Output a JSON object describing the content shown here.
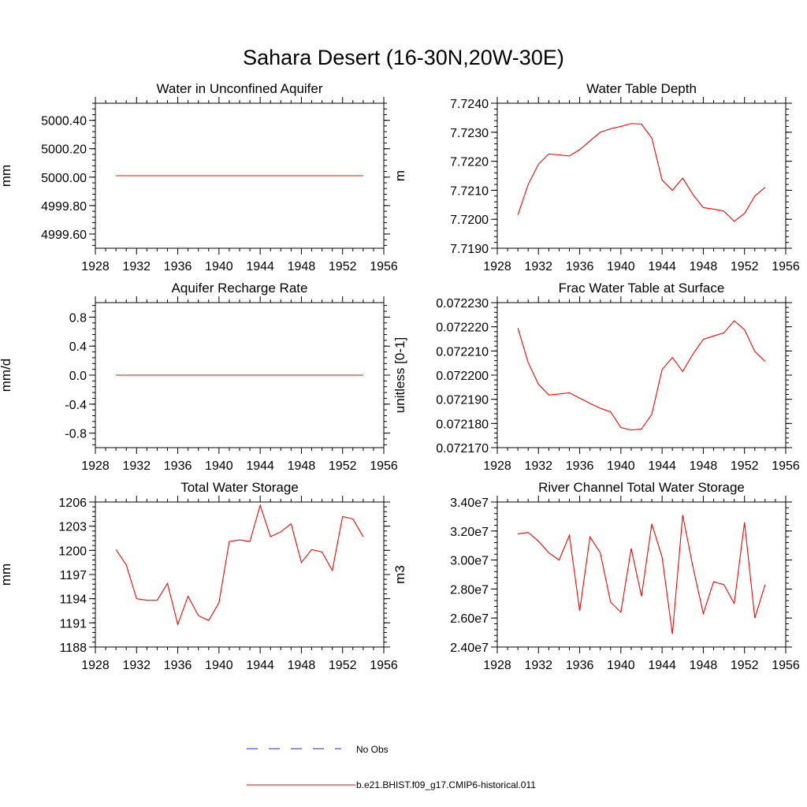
{
  "figure": {
    "title": "Sahara Desert (16-30N,20W-30E)",
    "legend": [
      {
        "label": "No Obs",
        "color": "#2b2bcf",
        "dash": true
      },
      {
        "label": "b.e21.BHIST.f09_g17.CMIP6-historical.011",
        "color": "#ff0000",
        "dash": false
      }
    ]
  },
  "chart_data": [
    {
      "type": "line",
      "title": "Water in Unconfined Aquifer",
      "ylabel": "mm",
      "xlim": [
        1928,
        1956
      ],
      "xticks": [
        1928,
        1932,
        1936,
        1940,
        1944,
        1948,
        1952,
        1956
      ],
      "ylim": [
        4999.5,
        5000.52
      ],
      "yticks": [
        4999.6,
        4999.8,
        5000.0,
        5000.2,
        5000.4
      ],
      "ytick_labels": [
        "4999.60",
        "4999.80",
        "5000.00",
        "5000.20",
        "5000.40"
      ],
      "series": [
        {
          "color": "#ff0000",
          "x": [
            1930,
            1931,
            1932,
            1933,
            1934,
            1935,
            1936,
            1937,
            1938,
            1939,
            1940,
            1941,
            1942,
            1943,
            1944,
            1945,
            1946,
            1947,
            1948,
            1949,
            1950,
            1951,
            1952,
            1953,
            1954
          ],
          "values": [
            5000.01,
            5000.01,
            5000.01,
            5000.01,
            5000.01,
            5000.01,
            5000.01,
            5000.01,
            5000.01,
            5000.01,
            5000.01,
            5000.01,
            5000.01,
            5000.01,
            5000.01,
            5000.01,
            5000.01,
            5000.01,
            5000.01,
            5000.01,
            5000.01,
            5000.01,
            5000.01,
            5000.01,
            5000.01
          ]
        }
      ]
    },
    {
      "type": "line",
      "title": "Water Table Depth",
      "ylabel": "m",
      "xlim": [
        1928,
        1956
      ],
      "xticks": [
        1928,
        1932,
        1936,
        1940,
        1944,
        1948,
        1952,
        1956
      ],
      "ylim": [
        7.719,
        7.724
      ],
      "yticks": [
        7.719,
        7.72,
        7.721,
        7.722,
        7.723,
        7.724
      ],
      "ytick_labels": [
        "7.7190",
        "7.7200",
        "7.7210",
        "7.7220",
        "7.7230",
        "7.7240"
      ],
      "series": [
        {
          "color": "#ff0000",
          "x": [
            1930,
            1931,
            1932,
            1933,
            1934,
            1935,
            1936,
            1937,
            1938,
            1939,
            1940,
            1941,
            1942,
            1943,
            1944,
            1945,
            1946,
            1947,
            1948,
            1949,
            1950,
            1951,
            1952,
            1953,
            1954
          ],
          "values": [
            7.72015,
            7.7212,
            7.7219,
            7.72225,
            7.72222,
            7.72218,
            7.7224,
            7.7227,
            7.723,
            7.72312,
            7.7232,
            7.7233,
            7.72328,
            7.7228,
            7.72135,
            7.721,
            7.72142,
            7.72085,
            7.7204,
            7.72035,
            7.72028,
            7.71993,
            7.7202,
            7.7208,
            7.7211
          ]
        }
      ]
    },
    {
      "type": "line",
      "title": "Aquifer Recharge Rate",
      "ylabel": "mm/d",
      "xlim": [
        1928,
        1956
      ],
      "xticks": [
        1928,
        1932,
        1936,
        1940,
        1944,
        1948,
        1952,
        1956
      ],
      "ylim": [
        -1.0,
        1.0
      ],
      "yticks": [
        -0.8,
        -0.4,
        0.0,
        0.4,
        0.8
      ],
      "ytick_labels": [
        "-0.8",
        "-0.4",
        "0.0",
        "0.4",
        "0.8"
      ],
      "series": [
        {
          "color": "#ff0000",
          "x": [
            1930,
            1931,
            1932,
            1933,
            1934,
            1935,
            1936,
            1937,
            1938,
            1939,
            1940,
            1941,
            1942,
            1943,
            1944,
            1945,
            1946,
            1947,
            1948,
            1949,
            1950,
            1951,
            1952,
            1953,
            1954
          ],
          "values": [
            0,
            0,
            0,
            0,
            0,
            0,
            0,
            0,
            0,
            0,
            0,
            0,
            0,
            0,
            0,
            0,
            0,
            0,
            0,
            0,
            0,
            0,
            0,
            0,
            0
          ]
        }
      ]
    },
    {
      "type": "line",
      "title": "Frac Water Table at Surface",
      "ylabel": "unitless [0-1]",
      "xlim": [
        1928,
        1956
      ],
      "xticks": [
        1928,
        1932,
        1936,
        1940,
        1944,
        1948,
        1952,
        1956
      ],
      "ylim": [
        0.07217,
        0.07223
      ],
      "yticks": [
        0.07217,
        0.07218,
        0.07219,
        0.0722,
        0.07221,
        0.07222,
        0.07223
      ],
      "ytick_labels": [
        "0.072170",
        "0.072180",
        "0.072190",
        "0.072200",
        "0.072210",
        "0.072220",
        "0.072230"
      ],
      "series": [
        {
          "color": "#ff0000",
          "x": [
            1930,
            1931,
            1932,
            1933,
            1934,
            1935,
            1936,
            1937,
            1938,
            1939,
            1940,
            1941,
            1942,
            1943,
            1944,
            1945,
            1946,
            1947,
            1948,
            1949,
            1950,
            1951,
            1952,
            1953,
            1954
          ],
          "values": [
            0.0722195,
            0.0722052,
            0.0721962,
            0.0721918,
            0.0721922,
            0.0721927,
            0.0721905,
            0.0721883,
            0.0721863,
            0.0721848,
            0.0721783,
            0.0721773,
            0.0721777,
            0.0721838,
            0.0722023,
            0.0722073,
            0.0722015,
            0.0722088,
            0.0722148,
            0.0722162,
            0.0722175,
            0.0722225,
            0.0722188,
            0.0722098,
            0.0722057
          ]
        }
      ]
    },
    {
      "type": "line",
      "title": "Total Water Storage",
      "ylabel": "mm",
      "xlim": [
        1928,
        1956
      ],
      "xticks": [
        1928,
        1932,
        1936,
        1940,
        1944,
        1948,
        1952,
        1956
      ],
      "ylim": [
        1188,
        1206
      ],
      "yticks": [
        1188,
        1191,
        1194,
        1197,
        1200,
        1203,
        1206
      ],
      "ytick_labels": [
        "1188",
        "1191",
        "1194",
        "1197",
        "1200",
        "1203",
        "1206"
      ],
      "series": [
        {
          "color": "#ff0000",
          "x": [
            1930,
            1931,
            1932,
            1933,
            1934,
            1935,
            1936,
            1937,
            1938,
            1939,
            1940,
            1941,
            1942,
            1943,
            1944,
            1945,
            1946,
            1947,
            1948,
            1949,
            1950,
            1951,
            1952,
            1953,
            1954
          ],
          "values": [
            1200.1,
            1198.2,
            1194.0,
            1193.8,
            1193.8,
            1195.9,
            1190.8,
            1194.3,
            1191.9,
            1191.3,
            1193.5,
            1201.1,
            1201.3,
            1201.1,
            1205.6,
            1201.7,
            1202.3,
            1203.3,
            1198.5,
            1200.1,
            1199.8,
            1197.5,
            1204.2,
            1203.9,
            1201.7
          ]
        }
      ]
    },
    {
      "type": "line",
      "title": "River Channel Total Water Storage",
      "ylabel": "m3",
      "xlim": [
        1928,
        1956
      ],
      "xticks": [
        1928,
        1932,
        1936,
        1940,
        1944,
        1948,
        1952,
        1956
      ],
      "ylim": [
        24000000,
        34000000
      ],
      "yticks": [
        24000000,
        26000000,
        28000000,
        30000000,
        32000000,
        34000000
      ],
      "ytick_labels": [
        "2.40e7",
        "2.60e7",
        "2.80e7",
        "3.00e7",
        "3.20e7",
        "3.40e7"
      ],
      "series": [
        {
          "color": "#ff0000",
          "x": [
            1930,
            1931,
            1932,
            1933,
            1934,
            1935,
            1936,
            1937,
            1938,
            1939,
            1940,
            1941,
            1942,
            1943,
            1944,
            1945,
            1946,
            1947,
            1948,
            1949,
            1950,
            1951,
            1952,
            1953,
            1954
          ],
          "values": [
            31800000,
            31900000,
            31300000,
            30500000,
            30000000,
            31700000,
            26500000,
            31600000,
            30500000,
            27100000,
            26400000,
            30800000,
            27500000,
            32500000,
            30200000,
            24900000,
            33100000,
            29500000,
            26300000,
            28500000,
            28300000,
            27000000,
            32600000,
            26000000,
            28300000
          ]
        }
      ]
    }
  ]
}
